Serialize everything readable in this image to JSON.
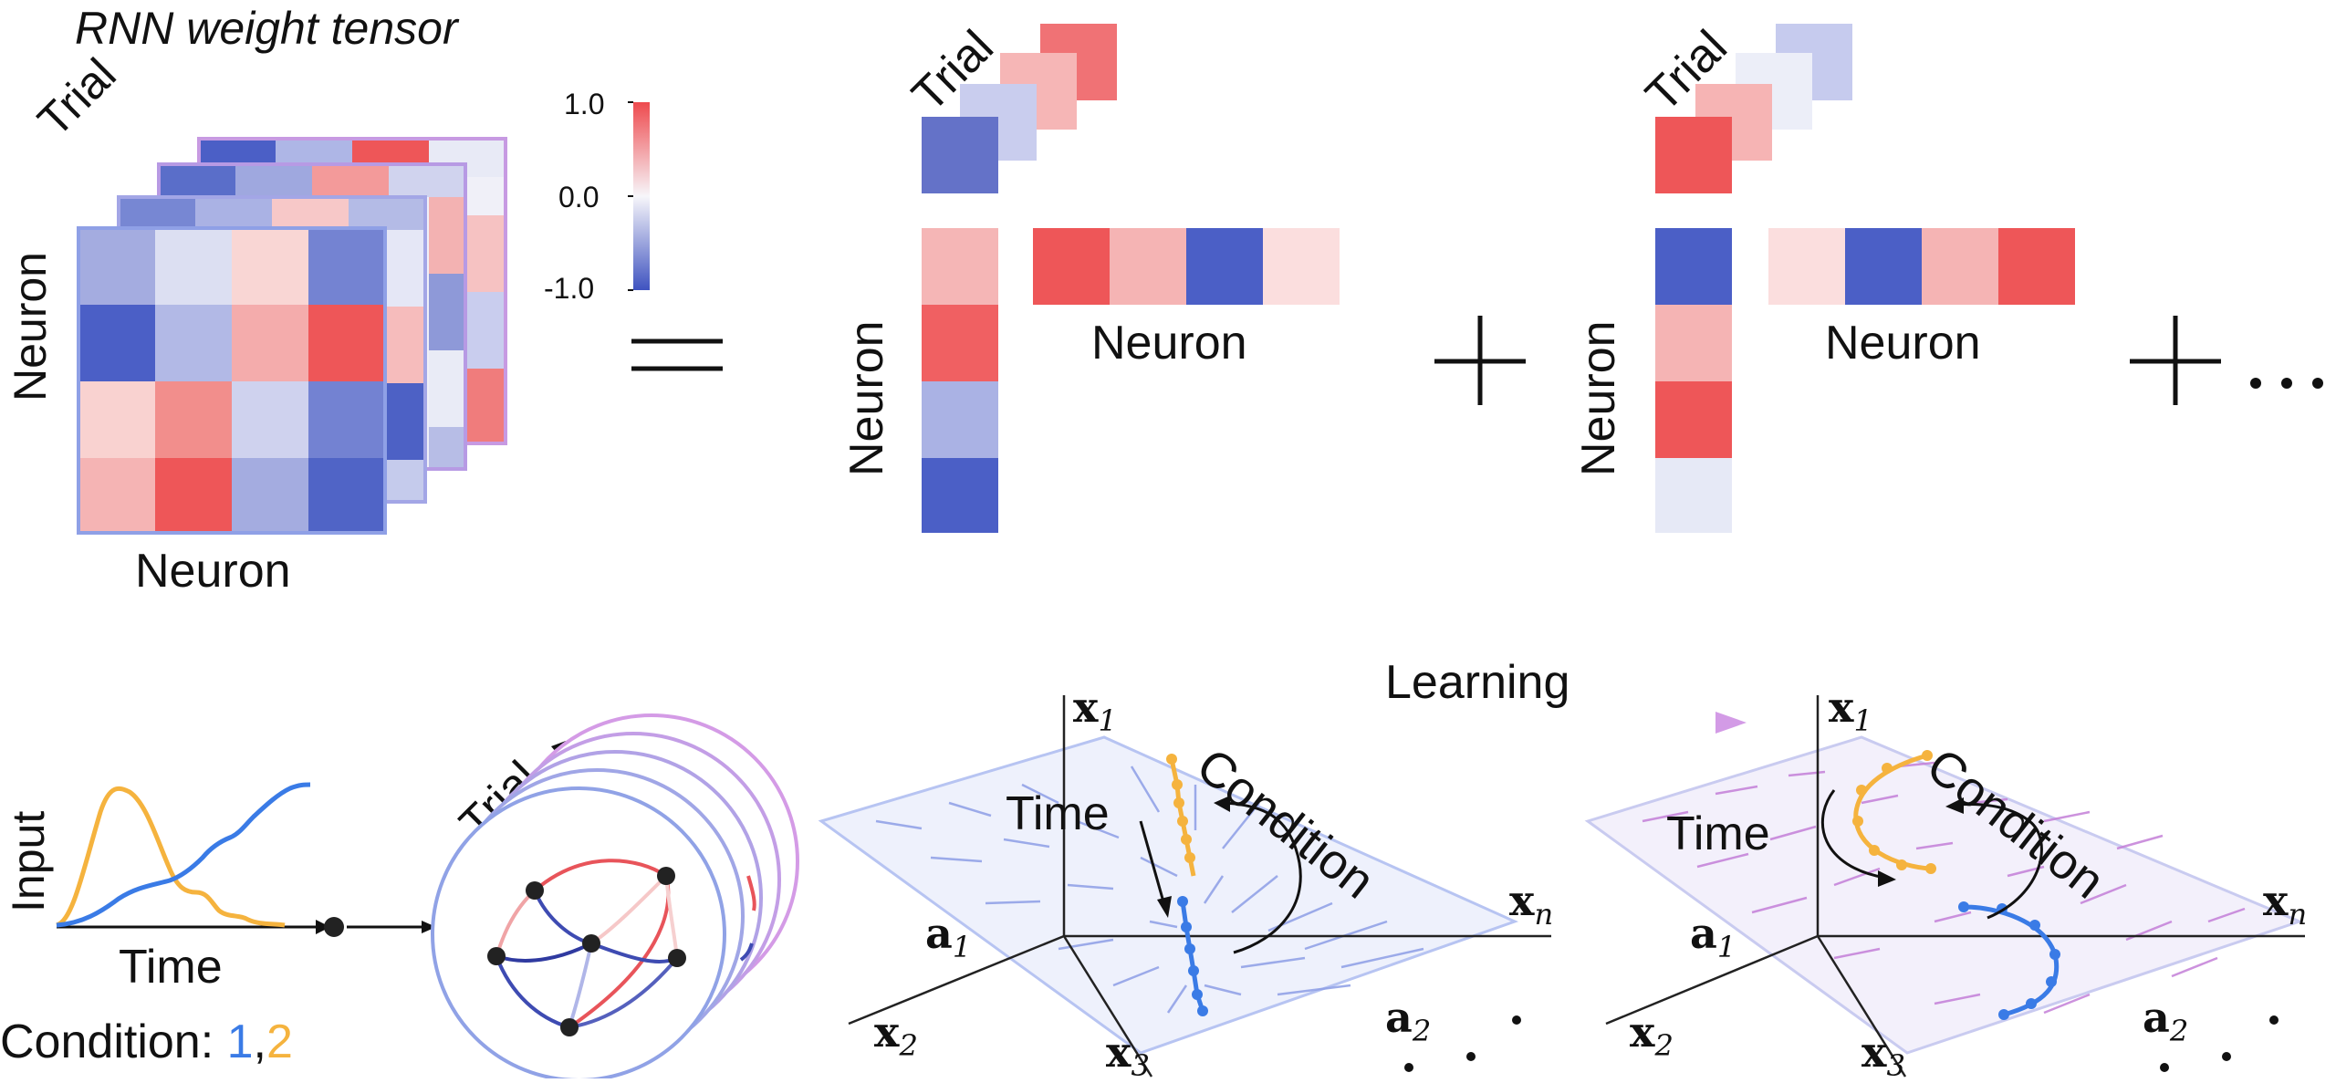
{
  "top": {
    "title": "RNN weight tensor",
    "trial_label": "Trial",
    "neuron_row_label": "Neuron",
    "neuron_col_label": "Neuron",
    "colorbar": {
      "max": "1.0",
      "mid": "0.0",
      "min": "-1.0"
    },
    "equals": "=",
    "plus": "+",
    "ellipsis": "…",
    "component1": {
      "trial": "Trial",
      "neuron_v": "Neuron",
      "neuron_h": "Neuron"
    },
    "component2": {
      "trial": "Trial",
      "neuron_v": "Neuron",
      "neuron_h": "Neuron"
    }
  },
  "bottom": {
    "input_label": "Input",
    "time_label": "Time",
    "condition_prefix": "Condition: ",
    "condition_1": "1",
    "condition_sep": ",",
    "condition_2": "2",
    "trial_label": "Trial",
    "learning_label": "Learning",
    "plane_left": {
      "time": "Time",
      "condition": "Condition"
    },
    "plane_right": {
      "time": "Time",
      "condition": "Condition"
    },
    "axes": {
      "x1": "x",
      "x1_sub": "1",
      "x2": "x",
      "x2_sub": "2",
      "x3": "x",
      "x3_sub": "3",
      "xn": "x",
      "xn_sub": "n",
      "a1": "a",
      "a1_sub": "1",
      "a2": "a",
      "a2_sub": "2"
    }
  },
  "colors": {
    "blue_strong": "#4a5cc4",
    "red_strong": "#ee5a5c",
    "condition_1": "#3a7be6",
    "condition_2": "#f5b33e",
    "purple": "#c98fe0",
    "flow_blue": "#6f86e0",
    "flow_purple": "#c47fd8"
  }
}
